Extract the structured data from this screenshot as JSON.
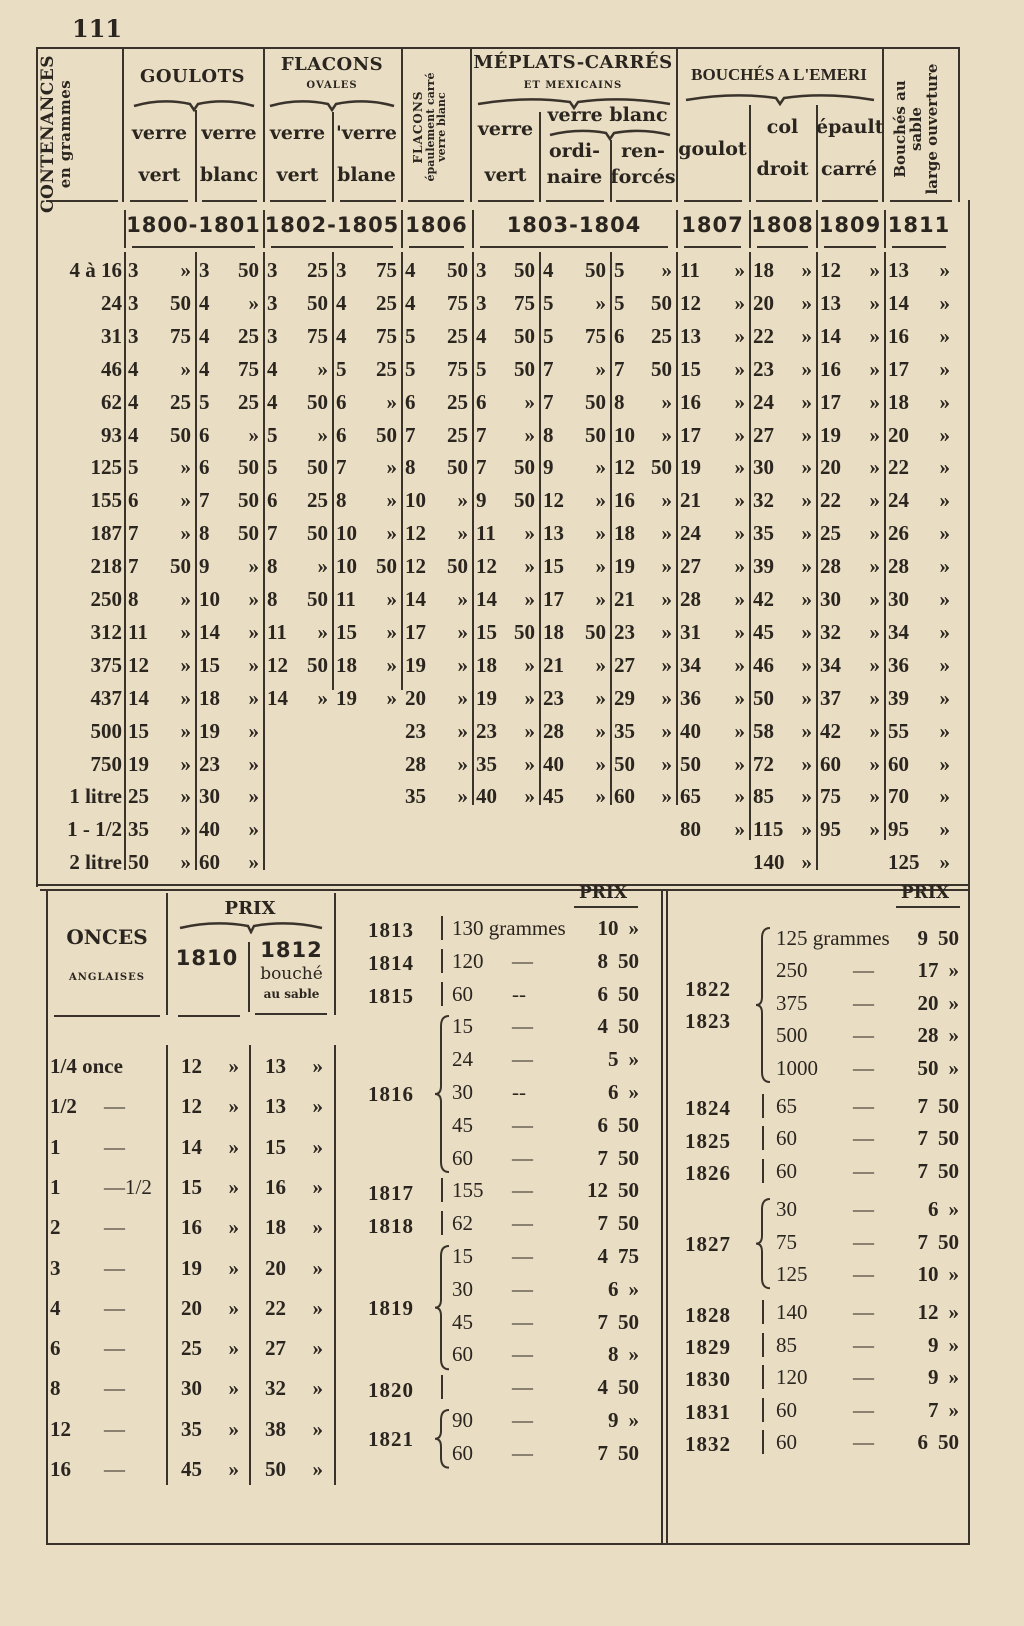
{
  "page_number": "111",
  "colors": {
    "paper": "#e9ddc3",
    "ink": "#2a251f"
  },
  "main_table": {
    "headers": {
      "contenances": "CONTENANCES",
      "contenances_unit": "en grammes",
      "goulots": "GOULOTS",
      "goulots_cols": [
        [
          "verre",
          "vert"
        ],
        [
          "verre",
          "blanc"
        ]
      ],
      "flacons_ovales": "FLACONS",
      "flacons_ovales_sub": "OVALES",
      "flacons_ovales_cols": [
        [
          "verre",
          "vert"
        ],
        [
          "'verre",
          "blane"
        ]
      ],
      "flacons_epaulement": [
        "FLACONS",
        "épaulement carré",
        "verre blanc"
      ],
      "meplats": "MÉPLATS-CARRÉS",
      "meplats_sub": "ET MEXICAINS",
      "meplats_vert": [
        "verre",
        "vert"
      ],
      "meplats_blanc": "verre blanc",
      "meplats_blanc_cols": [
        [
          "ordi-",
          "naire"
        ],
        [
          "ren-",
          "forcés"
        ]
      ],
      "bouches_emeri": "BOUCHÉS A L'EMERI",
      "bouches_emeri_cols": [
        [
          "goulot"
        ],
        [
          "col",
          "droit"
        ],
        [
          "épault",
          "carré"
        ]
      ],
      "bouches_sable": [
        "Bouchés au",
        "sable",
        "large ouverture"
      ]
    },
    "years": [
      "1800-1801",
      "1802-1805",
      "1806",
      "1803-1804",
      "1807",
      "1808",
      "1809",
      "1811"
    ],
    "rows": [
      {
        "label": "4 à 16",
        "values": [
          "3 »",
          "3 50",
          "3 25",
          "3 75",
          "4 50",
          "3 50",
          "4 50",
          "5 »",
          "11 »",
          "18 »",
          "12 »",
          "13 »"
        ]
      },
      {
        "label": "24",
        "values": [
          "3 50",
          "4 »",
          "3 50",
          "4 25",
          "4 75",
          "3 75",
          "5 »",
          "5 50",
          "12 »",
          "20 »",
          "13 »",
          "14 »"
        ]
      },
      {
        "label": "31",
        "values": [
          "3 75",
          "4 25",
          "3 75",
          "4 75",
          "5 25",
          "4 50",
          "5 75",
          "6 25",
          "13 »",
          "22 »",
          "14 »",
          "16 »"
        ]
      },
      {
        "label": "46",
        "values": [
          "4 »",
          "4 75",
          "4 »",
          "5 25",
          "5 75",
          "5 50",
          "7 »",
          "7 50",
          "15 »",
          "23 »",
          "16 »",
          "17 »"
        ]
      },
      {
        "label": "62",
        "values": [
          "4 25",
          "5 25",
          "4 50",
          "6 »",
          "6 25",
          "6 »",
          "7 50",
          "8 »",
          "16 »",
          "24 »",
          "17 »",
          "18 »"
        ]
      },
      {
        "label": "93",
        "values": [
          "4 50",
          "6 »",
          "5 »",
          "6 50",
          "7 25",
          "7 »",
          "8 50",
          "10 »",
          "17 »",
          "27 »",
          "19 »",
          "20 »"
        ]
      },
      {
        "label": "125",
        "values": [
          "5 »",
          "6 50",
          "5 50",
          "7 »",
          "8 50",
          "7 50",
          "9 »",
          "12 50",
          "19 »",
          "30 »",
          "20 »",
          "22 »"
        ]
      },
      {
        "label": "155",
        "values": [
          "6 »",
          "7 50",
          "6 25",
          "8 »",
          "10 »",
          "9 50",
          "12 »",
          "16 »",
          "21 »",
          "32 »",
          "22 »",
          "24 »"
        ]
      },
      {
        "label": "187",
        "values": [
          "7 »",
          "8 50",
          "7 50",
          "10 »",
          "12 »",
          "11 »",
          "13 »",
          "18 »",
          "24 »",
          "35 »",
          "25 »",
          "26 »"
        ]
      },
      {
        "label": "218",
        "values": [
          "7 50",
          "9 »",
          "8 »",
          "10 50",
          "12 50",
          "12 »",
          "15 »",
          "19 »",
          "27 »",
          "39 »",
          "28 »",
          "28 »"
        ]
      },
      {
        "label": "250",
        "values": [
          "8 »",
          "10 »",
          "8 50",
          "11 »",
          "14 »",
          "14 »",
          "17 »",
          "21 »",
          "28 »",
          "42 »",
          "30 »",
          "30 »"
        ]
      },
      {
        "label": "312",
        "values": [
          "11 »",
          "14 »",
          "11 »",
          "15 »",
          "17 »",
          "15 50",
          "18 50",
          "23 »",
          "31 »",
          "45 »",
          "32 »",
          "34 »"
        ]
      },
      {
        "label": "375",
        "values": [
          "12 »",
          "15 »",
          "12 50",
          "18 »",
          "19 »",
          "18 »",
          "21 »",
          "27 »",
          "34 »",
          "46 »",
          "34 »",
          "36 »"
        ]
      },
      {
        "label": "437",
        "values": [
          "14 »",
          "18 »",
          "14 »",
          "19 »",
          "20 »",
          "19 »",
          "23 »",
          "29 »",
          "36 »",
          "50 »",
          "37 »",
          "39 »"
        ]
      },
      {
        "label": "500",
        "values": [
          "15 »",
          "19 »",
          "",
          "",
          "23 »",
          "23 »",
          "28 »",
          "35 »",
          "40 »",
          "58 »",
          "42 »",
          "55 »"
        ]
      },
      {
        "label": "750",
        "values": [
          "19 »",
          "23 »",
          "",
          "",
          "28 »",
          "35 »",
          "40 »",
          "50 »",
          "50 »",
          "72 »",
          "60 »",
          "60 »"
        ]
      },
      {
        "label": "1 litre",
        "values": [
          "25 »",
          "30 »",
          "",
          "",
          "35 »",
          "40 »",
          "45 »",
          "60 »",
          "65 »",
          "85 »",
          "75 »",
          "70 »"
        ]
      },
      {
        "label": "1 - 1/2",
        "values": [
          "35 »",
          "40 »",
          "",
          "",
          "",
          "",
          "",
          "",
          "80 »",
          "115 »",
          "95 »",
          "95 »"
        ]
      },
      {
        "label": "2 litre",
        "values": [
          "50 »",
          "60 »",
          "",
          "",
          "",
          "",
          "",
          "",
          "",
          "140 »",
          "",
          "125 »"
        ]
      }
    ]
  },
  "onces_table": {
    "header": "ONCES",
    "subheader": "ANGLAISES",
    "prix": "PRIX",
    "col_1810": "1810",
    "col_1812": [
      "1812",
      "bouché",
      "au sable"
    ],
    "rows": [
      {
        "qty": "1/4 once",
        "sep": "",
        "p1810": "12 »",
        "p1812": "13 »"
      },
      {
        "qty": "1/2",
        "sep": "—",
        "p1810": "12 »",
        "p1812": "13 »"
      },
      {
        "qty": "1",
        "sep": "—",
        "p1810": "14 »",
        "p1812": "15 »"
      },
      {
        "qty": "1",
        "sep": "—1/2",
        "p1810": "15 »",
        "p1812": "16 »"
      },
      {
        "qty": "2",
        "sep": "—",
        "p1810": "16 »",
        "p1812": "18 »"
      },
      {
        "qty": "3",
        "sep": "—",
        "p1810": "19 »",
        "p1812": "20 »"
      },
      {
        "qty": "4",
        "sep": "—",
        "p1810": "20 »",
        "p1812": "22 »"
      },
      {
        "qty": "6",
        "sep": "—",
        "p1810": "25 »",
        "p1812": "27 »"
      },
      {
        "qty": "8",
        "sep": "—",
        "p1810": "30 »",
        "p1812": "32 »"
      },
      {
        "qty": "12",
        "sep": "—",
        "p1810": "35 »",
        "p1812": "38 »"
      },
      {
        "qty": "16",
        "sep": "—",
        "p1810": "45 »",
        "p1812": "50 »"
      }
    ]
  },
  "middle_table": {
    "prix": "PRIX",
    "groups": [
      {
        "years": [
          "1813"
        ],
        "items": [
          {
            "qty": "130 grammes",
            "dash": "",
            "price": "10 »"
          }
        ]
      },
      {
        "years": [
          "1814"
        ],
        "items": [
          {
            "qty": "120",
            "dash": "—",
            "price": "8 50"
          }
        ]
      },
      {
        "years": [
          "1815"
        ],
        "items": [
          {
            "qty": "60",
            "dash": "--",
            "price": "6 50"
          }
        ]
      },
      {
        "years": [
          "1816"
        ],
        "items": [
          {
            "qty": "15",
            "dash": "—",
            "price": "4 50"
          },
          {
            "qty": "24",
            "dash": "—",
            "price": "5 »"
          },
          {
            "qty": "30",
            "dash": "--",
            "price": "6 »"
          },
          {
            "qty": "45",
            "dash": "—",
            "price": "6 50"
          },
          {
            "qty": "60",
            "dash": "—",
            "price": "7 50"
          }
        ]
      },
      {
        "years": [
          "1817"
        ],
        "items": [
          {
            "qty": "155",
            "dash": "—",
            "price": "12 50"
          }
        ]
      },
      {
        "years": [
          "1818"
        ],
        "items": [
          {
            "qty": "62",
            "dash": "—",
            "price": "7 50"
          }
        ]
      },
      {
        "years": [
          "1819"
        ],
        "items": [
          {
            "qty": "15",
            "dash": "—",
            "price": "4 75"
          },
          {
            "qty": "30",
            "dash": "—",
            "price": "6 »"
          },
          {
            "qty": "45",
            "dash": "—",
            "price": "7 50"
          },
          {
            "qty": "60",
            "dash": "—",
            "price": "8 »"
          }
        ]
      },
      {
        "years": [
          "1820"
        ],
        "items": [
          {
            "qty": "",
            "dash": "—",
            "price": "4 50"
          }
        ]
      },
      {
        "years": [
          "1821"
        ],
        "items": [
          {
            "qty": "90",
            "dash": "—",
            "price": "9 »"
          },
          {
            "qty": "60",
            "dash": "—",
            "price": "7 50"
          }
        ]
      }
    ]
  },
  "right_table": {
    "prix": "PRIX",
    "groups": [
      {
        "years": [
          "1822",
          "1823"
        ],
        "items": [
          {
            "qty": "125 grammes",
            "dash": "",
            "price": "9 50"
          },
          {
            "qty": "250",
            "dash": "—",
            "price": "17 »"
          },
          {
            "qty": "375",
            "dash": "—",
            "price": "20 »"
          },
          {
            "qty": "500",
            "dash": "—",
            "price": "28 »"
          },
          {
            "qty": "1000",
            "dash": "—",
            "price": "50 »"
          }
        ]
      },
      {
        "years": [
          "1824"
        ],
        "items": [
          {
            "qty": "65",
            "dash": "—",
            "price": "7 50"
          }
        ]
      },
      {
        "years": [
          "1825"
        ],
        "items": [
          {
            "qty": "60",
            "dash": "—",
            "price": "7 50"
          }
        ]
      },
      {
        "years": [
          "1826"
        ],
        "items": [
          {
            "qty": "60",
            "dash": "—",
            "price": "7 50"
          }
        ]
      },
      {
        "years": [
          "1827"
        ],
        "items": [
          {
            "qty": "30",
            "dash": "—",
            "price": "6 »"
          },
          {
            "qty": "75",
            "dash": "—",
            "price": "7 50"
          },
          {
            "qty": "125",
            "dash": "—",
            "price": "10 »"
          }
        ]
      },
      {
        "years": [
          "1828"
        ],
        "items": [
          {
            "qty": "140",
            "dash": "—",
            "price": "12 »"
          }
        ]
      },
      {
        "years": [
          "1829"
        ],
        "items": [
          {
            "qty": "85",
            "dash": "—",
            "price": "9 »"
          }
        ]
      },
      {
        "years": [
          "1830"
        ],
        "items": [
          {
            "qty": "120",
            "dash": "—",
            "price": "9 »"
          }
        ]
      },
      {
        "years": [
          "1831"
        ],
        "items": [
          {
            "qty": "60",
            "dash": "—",
            "price": "7 »"
          }
        ]
      },
      {
        "years": [
          "1832"
        ],
        "items": [
          {
            "qty": "60",
            "dash": "—",
            "price": "6 50"
          }
        ]
      }
    ]
  }
}
